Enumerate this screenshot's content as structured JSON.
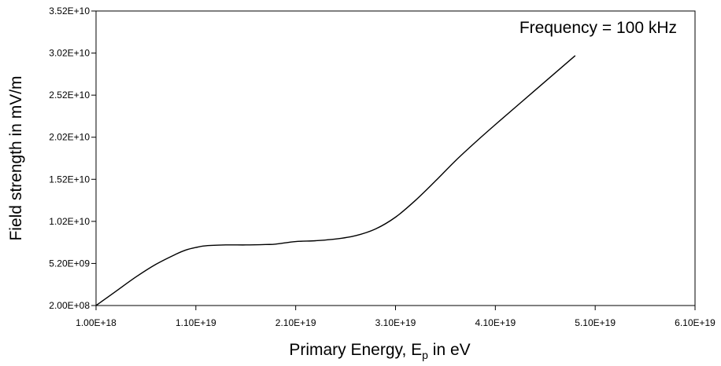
{
  "chart_data": {
    "type": "line",
    "title": "",
    "annotation": "Frequency = 100 kHz",
    "xlabel": {
      "main": "Primary Energy, E",
      "sub": "p",
      "tail": " in eV"
    },
    "ylabel": "Field strength in mV/m",
    "xlim": [
      1e+18,
      6.1e+19
    ],
    "ylim": [
      200000000.0,
      35200000000.0
    ],
    "x_ticks": [
      1e+18,
      1.1e+19,
      2.1e+19,
      3.1e+19,
      4.1e+19,
      5.1e+19,
      6.1e+19
    ],
    "x_tick_labels": [
      "1.00E+18",
      "1.10E+19",
      "2.10E+19",
      "3.10E+19",
      "4.10E+19",
      "5.10E+19",
      "6.10E+19"
    ],
    "y_ticks": [
      200000000.0,
      5200000000.0,
      10200000000.0,
      15200000000.0,
      20200000000.0,
      25200000000.0,
      30200000000.0,
      35200000000.0
    ],
    "y_tick_labels": [
      "2.00E+08",
      "5.20E+09",
      "1.02E+10",
      "1.52E+10",
      "2.02E+10",
      "2.52E+10",
      "3.02E+10",
      "3.52E+10"
    ],
    "grid": false,
    "series": [
      {
        "x": [
          1e+18,
          3e+18,
          5e+18,
          7e+18,
          9e+18,
          1e+19,
          1.1e+19,
          1.2e+19,
          1.4e+19,
          1.6e+19,
          1.8e+19,
          1.9e+19,
          2.1e+19,
          2.3e+19,
          2.5e+19,
          2.7e+19,
          2.9e+19,
          3.1e+19,
          3.3e+19,
          3.5e+19,
          3.7e+19,
          3.9e+19,
          4.1e+19,
          4.5e+19,
          4.9e+19
        ],
        "y": [
          200000000.0,
          1900000000.0,
          3600000000.0,
          5100000000.0,
          6300000000.0,
          6800000000.0,
          7100000000.0,
          7300000000.0,
          7400000000.0,
          7400000000.0,
          7450000000.0,
          7500000000.0,
          7800000000.0,
          7900000000.0,
          8100000000.0,
          8500000000.0,
          9300000000.0,
          10700000000.0,
          12700000000.0,
          15000000000.0,
          17400000000.0,
          19600000000.0,
          21700000000.0,
          25800000000.0,
          29900000000.0
        ]
      }
    ]
  }
}
